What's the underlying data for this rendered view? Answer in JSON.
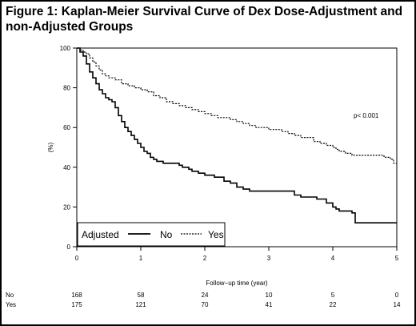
{
  "figure": {
    "title": "Figure 1: Kaplan-Meier Survival Curve of Dex Dose-Adjustment and non-Adjusted Groups"
  },
  "chart_data": {
    "type": "line",
    "step": true,
    "xlabel": "Follow−up time (year)",
    "ylabel": "(%)",
    "xlim": [
      0,
      5
    ],
    "ylim": [
      0,
      100
    ],
    "xticks": [
      "0",
      "1",
      "2",
      "3",
      "4",
      "5"
    ],
    "yticks": [
      "0",
      "20",
      "40",
      "60",
      "80",
      "100"
    ],
    "grid": false,
    "legend": {
      "title": "Adjusted",
      "placement": "bottom-left"
    },
    "annotation": "p< 0.001",
    "series": [
      {
        "name": "No",
        "line_style": "solid",
        "points": [
          [
            0,
            100
          ],
          [
            0.05,
            98
          ],
          [
            0.1,
            96
          ],
          [
            0.15,
            92
          ],
          [
            0.2,
            88
          ],
          [
            0.25,
            85
          ],
          [
            0.3,
            82
          ],
          [
            0.35,
            79
          ],
          [
            0.4,
            77
          ],
          [
            0.45,
            75
          ],
          [
            0.5,
            74
          ],
          [
            0.55,
            73
          ],
          [
            0.6,
            70
          ],
          [
            0.65,
            66
          ],
          [
            0.7,
            63
          ],
          [
            0.75,
            60
          ],
          [
            0.8,
            58
          ],
          [
            0.85,
            56
          ],
          [
            0.9,
            54
          ],
          [
            0.95,
            52
          ],
          [
            1.0,
            50
          ],
          [
            1.05,
            48
          ],
          [
            1.1,
            47
          ],
          [
            1.15,
            45
          ],
          [
            1.2,
            44
          ],
          [
            1.25,
            43
          ],
          [
            1.35,
            42
          ],
          [
            1.6,
            41
          ],
          [
            1.65,
            40
          ],
          [
            1.75,
            39
          ],
          [
            1.8,
            38
          ],
          [
            1.9,
            37
          ],
          [
            2.0,
            36
          ],
          [
            2.15,
            35
          ],
          [
            2.3,
            33
          ],
          [
            2.4,
            32
          ],
          [
            2.5,
            30
          ],
          [
            2.6,
            29
          ],
          [
            2.7,
            28
          ],
          [
            2.85,
            28
          ],
          [
            3.0,
            28
          ],
          [
            3.3,
            28
          ],
          [
            3.4,
            26
          ],
          [
            3.5,
            25
          ],
          [
            3.65,
            25
          ],
          [
            3.75,
            24
          ],
          [
            3.9,
            22
          ],
          [
            4.0,
            20
          ],
          [
            4.05,
            19
          ],
          [
            4.1,
            18
          ],
          [
            4.2,
            18
          ],
          [
            4.3,
            17
          ],
          [
            4.35,
            12
          ],
          [
            4.6,
            12
          ],
          [
            5.0,
            12
          ]
        ]
      },
      {
        "name": "Yes",
        "line_style": "dotted",
        "points": [
          [
            0,
            100
          ],
          [
            0.05,
            99
          ],
          [
            0.1,
            98
          ],
          [
            0.15,
            97
          ],
          [
            0.2,
            95
          ],
          [
            0.25,
            93
          ],
          [
            0.3,
            91
          ],
          [
            0.35,
            89
          ],
          [
            0.4,
            87
          ],
          [
            0.45,
            86
          ],
          [
            0.5,
            85
          ],
          [
            0.6,
            84
          ],
          [
            0.7,
            82
          ],
          [
            0.8,
            81
          ],
          [
            0.9,
            80
          ],
          [
            1.0,
            79
          ],
          [
            1.1,
            78
          ],
          [
            1.2,
            76
          ],
          [
            1.3,
            75
          ],
          [
            1.4,
            73
          ],
          [
            1.5,
            72
          ],
          [
            1.6,
            71
          ],
          [
            1.7,
            70
          ],
          [
            1.8,
            69
          ],
          [
            1.9,
            68
          ],
          [
            2.0,
            67
          ],
          [
            2.1,
            66
          ],
          [
            2.2,
            65
          ],
          [
            2.4,
            64
          ],
          [
            2.5,
            63
          ],
          [
            2.6,
            62
          ],
          [
            2.7,
            61
          ],
          [
            2.8,
            60
          ],
          [
            2.9,
            60
          ],
          [
            3.0,
            59
          ],
          [
            3.2,
            58
          ],
          [
            3.3,
            57
          ],
          [
            3.4,
            56
          ],
          [
            3.5,
            55
          ],
          [
            3.6,
            55
          ],
          [
            3.7,
            53
          ],
          [
            3.8,
            52
          ],
          [
            3.9,
            51
          ],
          [
            4.0,
            50
          ],
          [
            4.05,
            49
          ],
          [
            4.1,
            48
          ],
          [
            4.2,
            47
          ],
          [
            4.3,
            46
          ],
          [
            4.4,
            46
          ],
          [
            4.6,
            46
          ],
          [
            4.8,
            45
          ],
          [
            4.9,
            44
          ],
          [
            4.95,
            42
          ],
          [
            5.0,
            42
          ]
        ]
      }
    ],
    "number_at_risk": {
      "times": [
        0,
        1,
        2,
        3,
        4,
        5
      ],
      "rows": [
        {
          "label": "No",
          "values": [
            "168",
            "58",
            "24",
            "10",
            "5",
            "0"
          ]
        },
        {
          "label": "Yes",
          "values": [
            "175",
            "121",
            "70",
            "41",
            "22",
            "14"
          ]
        }
      ]
    }
  }
}
